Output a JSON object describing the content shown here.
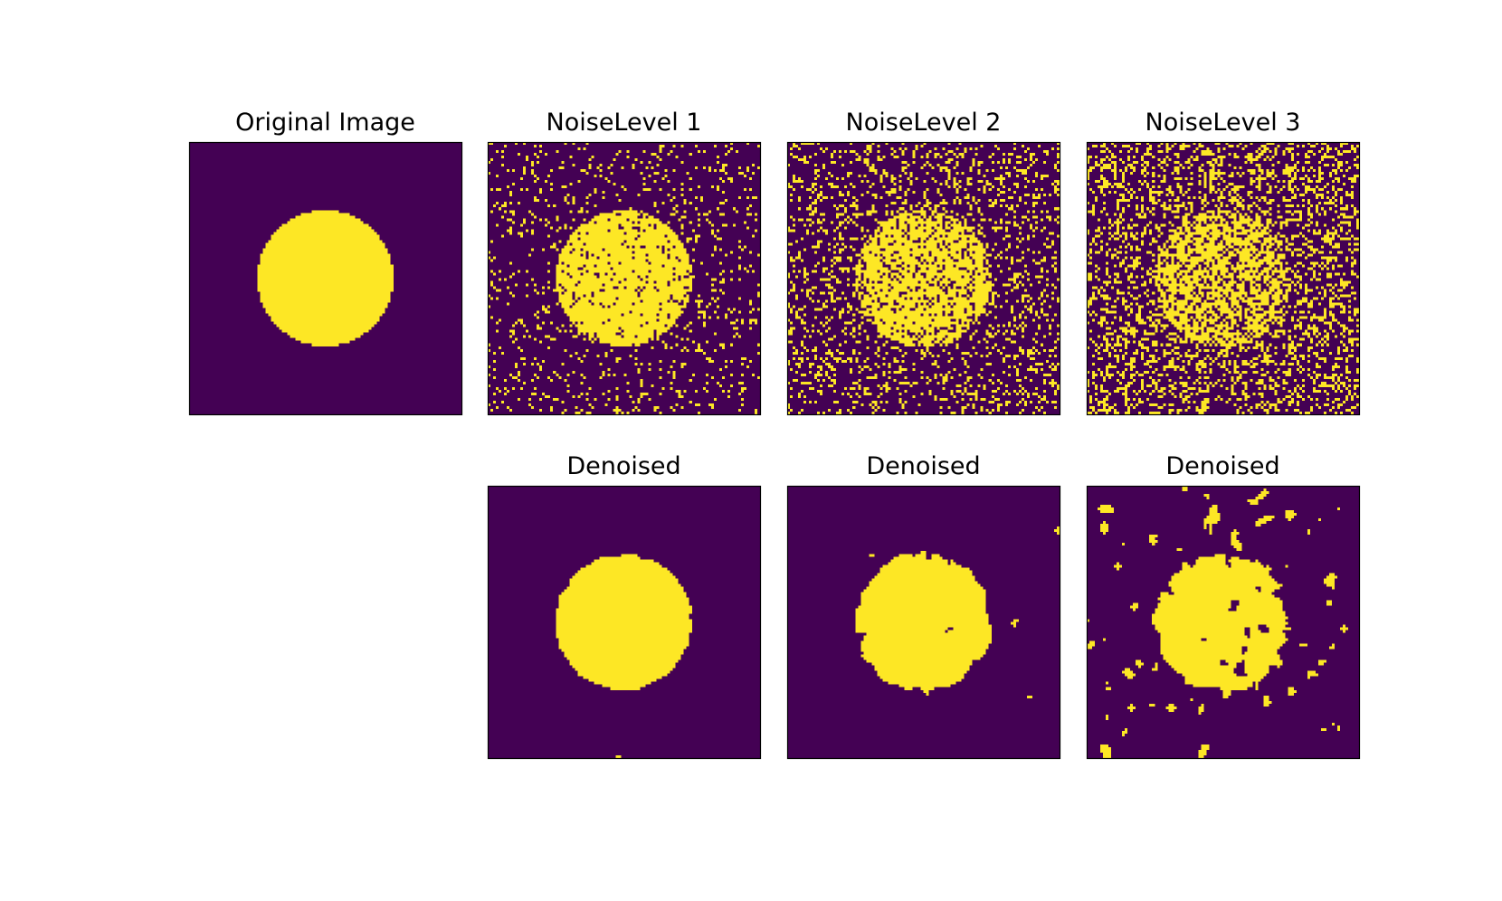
{
  "panels": [
    {
      "title": "Original Image"
    },
    {
      "title": "NoiseLevel 1"
    },
    {
      "title": "NoiseLevel 2"
    },
    {
      "title": "NoiseLevel 3"
    },
    {
      "title": "Denoised"
    },
    {
      "title": "Denoised"
    },
    {
      "title": "Denoised"
    }
  ]
}
